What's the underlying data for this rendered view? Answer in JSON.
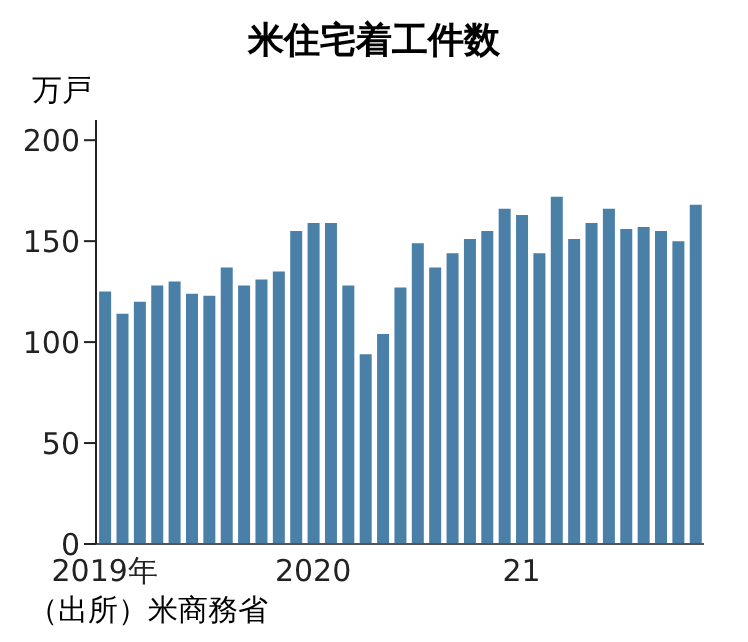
{
  "chart_data": {
    "type": "bar",
    "title": "米住宅着工件数",
    "ylabel": "万戸",
    "annotations": [
      "（出所）米商務省"
    ],
    "categories": [
      "2019年",
      null,
      null,
      null,
      null,
      null,
      null,
      null,
      null,
      null,
      null,
      null,
      "2020",
      null,
      null,
      null,
      null,
      null,
      null,
      null,
      null,
      null,
      null,
      null,
      "21",
      null,
      null,
      null,
      null,
      null,
      null,
      null,
      null,
      null,
      null
    ],
    "values": [
      125,
      114,
      120,
      128,
      130,
      124,
      123,
      137,
      128,
      131,
      135,
      155,
      159,
      159,
      128,
      94,
      104,
      127,
      149,
      137,
      144,
      151,
      155,
      166,
      163,
      144,
      172,
      151,
      159,
      166,
      156,
      157,
      155,
      150,
      168
    ],
    "color": "#4a7fa7",
    "ylim": [
      0,
      210
    ],
    "yticks": [
      0,
      50,
      100,
      150,
      200
    ]
  }
}
